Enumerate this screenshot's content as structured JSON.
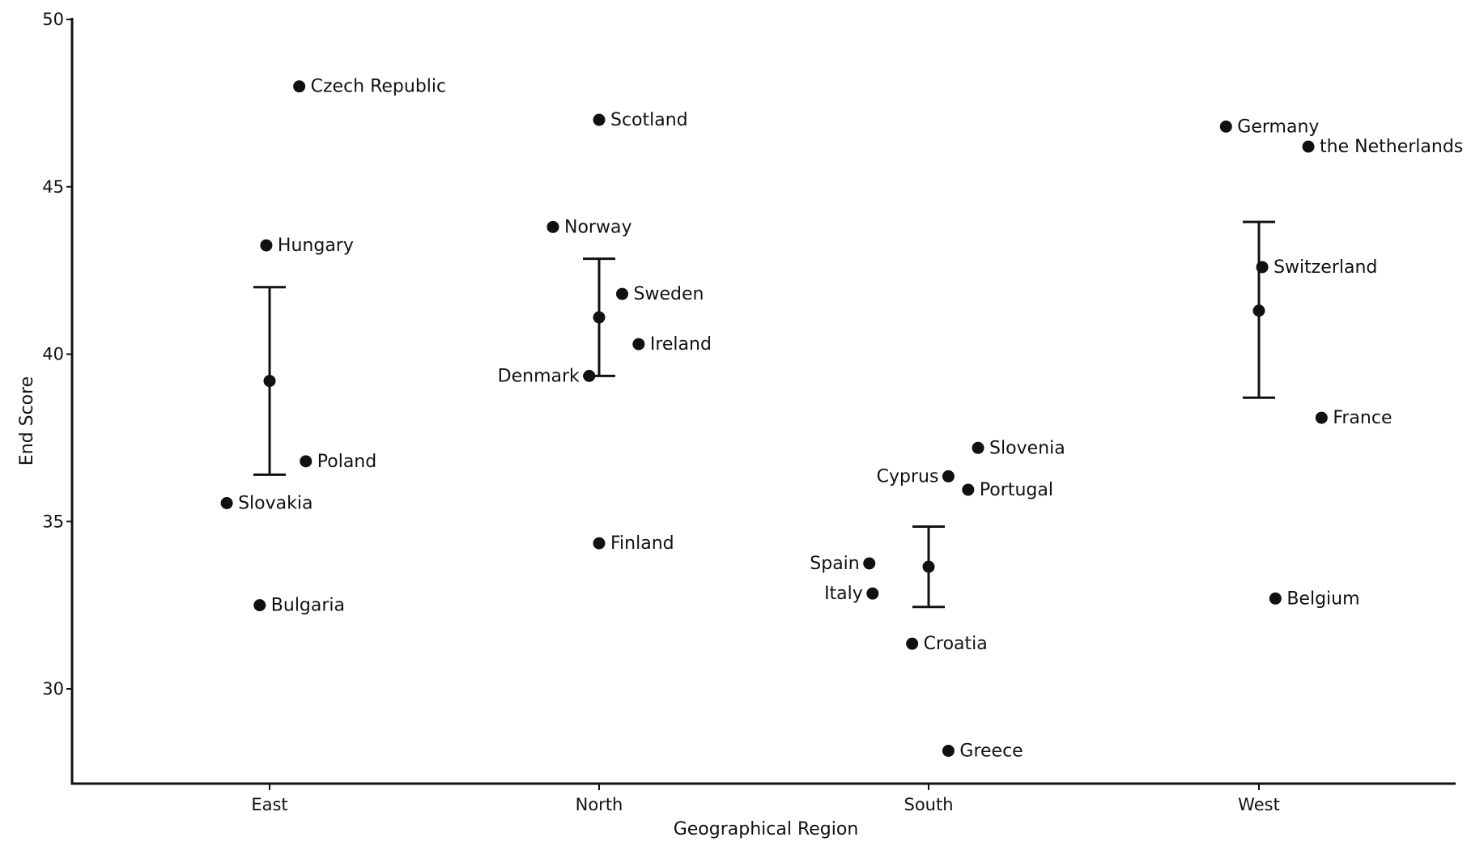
{
  "chart_data": {
    "type": "scatter",
    "xlabel": "Geographical Region",
    "ylabel": "End Score",
    "categories": [
      "East",
      "North",
      "South",
      "West"
    ],
    "ylim": [
      27.2,
      50
    ],
    "yticks": [
      30,
      35,
      40,
      45,
      50
    ],
    "grid": false,
    "points": [
      {
        "label": "Czech Republic",
        "category": "East",
        "offset": 0.09,
        "y": 48.0
      },
      {
        "label": "Hungary",
        "category": "East",
        "offset": -0.01,
        "y": 43.25
      },
      {
        "label": "Poland",
        "category": "East",
        "offset": 0.11,
        "y": 36.8
      },
      {
        "label": "Slovakia",
        "category": "East",
        "offset": -0.13,
        "y": 35.55
      },
      {
        "label": "Bulgaria",
        "category": "East",
        "offset": -0.03,
        "y": 32.5
      },
      {
        "label": "Scotland",
        "category": "North",
        "offset": 0.0,
        "y": 47.0
      },
      {
        "label": "Norway",
        "category": "North",
        "offset": -0.14,
        "y": 43.8
      },
      {
        "label": "Sweden",
        "category": "North",
        "offset": 0.07,
        "y": 41.8
      },
      {
        "label": "Ireland",
        "category": "North",
        "offset": 0.12,
        "y": 40.3
      },
      {
        "label": "Denmark",
        "category": "North",
        "offset": -0.03,
        "y": 39.35
      },
      {
        "label": "Finland",
        "category": "North",
        "offset": 0.0,
        "y": 34.35
      },
      {
        "label": "Slovenia",
        "category": "South",
        "offset": 0.15,
        "y": 37.2
      },
      {
        "label": "Cyprus",
        "category": "South",
        "offset": 0.06,
        "y": 36.35
      },
      {
        "label": "Portugal",
        "category": "South",
        "offset": 0.12,
        "y": 35.95
      },
      {
        "label": "Spain",
        "category": "South",
        "offset": -0.18,
        "y": 33.75
      },
      {
        "label": "Italy",
        "category": "South",
        "offset": -0.17,
        "y": 32.85
      },
      {
        "label": "Croatia",
        "category": "South",
        "offset": -0.05,
        "y": 31.35
      },
      {
        "label": "Greece",
        "category": "South",
        "offset": 0.06,
        "y": 28.15
      },
      {
        "label": "Germany",
        "category": "West",
        "offset": -0.1,
        "y": 46.8
      },
      {
        "label": "the Netherlands",
        "category": "West",
        "offset": 0.15,
        "y": 46.2
      },
      {
        "label": "Switzerland",
        "category": "West",
        "offset": 0.01,
        "y": 42.6
      },
      {
        "label": "France",
        "category": "West",
        "offset": 0.19,
        "y": 38.1
      },
      {
        "label": "Belgium",
        "category": "West",
        "offset": 0.05,
        "y": 32.7
      }
    ],
    "summary": [
      {
        "category": "East",
        "mean": 39.2,
        "lower": 36.4,
        "upper": 42.0
      },
      {
        "category": "North",
        "mean": 41.1,
        "lower": 39.35,
        "upper": 42.85
      },
      {
        "category": "South",
        "mean": 33.65,
        "lower": 32.45,
        "upper": 34.85
      },
      {
        "category": "West",
        "mean": 41.3,
        "lower": 38.7,
        "upper": 43.95
      }
    ]
  }
}
